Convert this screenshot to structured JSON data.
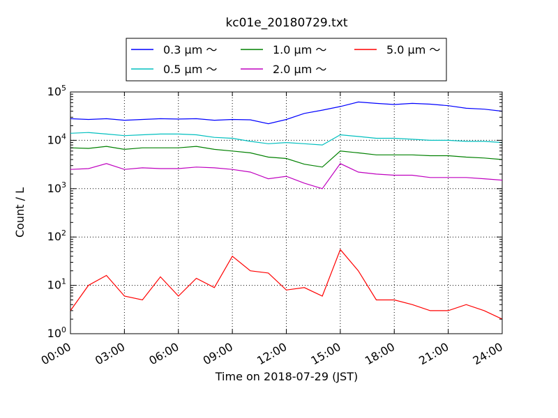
{
  "chart_data": {
    "type": "line",
    "title": "kc01e_20180729.txt",
    "xlabel": "Time on 2018-07-29 (JST)",
    "ylabel": "Count / L",
    "y_scale": "log",
    "ylim": [
      1,
      100000
    ],
    "xlim": [
      "00:00",
      "24:00"
    ],
    "grid": true,
    "legend_placement": "top-center",
    "x_tick_labels": [
      "00:00",
      "03:00",
      "06:00",
      "09:00",
      "12:00",
      "15:00",
      "18:00",
      "21:00",
      "24:00"
    ],
    "y_tick_labels": [
      {
        "base": "10",
        "exp": "0"
      },
      {
        "base": "10",
        "exp": "1"
      },
      {
        "base": "10",
        "exp": "2"
      },
      {
        "base": "10",
        "exp": "3"
      },
      {
        "base": "10",
        "exp": "4"
      },
      {
        "base": "10",
        "exp": "5"
      }
    ],
    "x_hours": [
      0,
      1,
      2,
      3,
      4,
      5,
      6,
      7,
      8,
      9,
      10,
      11,
      12,
      13,
      14,
      15,
      16,
      17,
      18,
      19,
      20,
      21,
      22,
      23,
      24
    ],
    "series": [
      {
        "name": "0.3 μm ～",
        "color": "#0000ff",
        "values": [
          28000,
          27000,
          28000,
          26000,
          27000,
          28000,
          27500,
          28000,
          26000,
          27000,
          26500,
          22000,
          27000,
          36000,
          42000,
          50000,
          62000,
          58000,
          55000,
          58000,
          56000,
          52000,
          46000,
          44000,
          40000
        ]
      },
      {
        "name": "0.5 μm ～",
        "color": "#00bfbf",
        "values": [
          14000,
          14500,
          13500,
          12500,
          13000,
          13500,
          13500,
          13000,
          11500,
          11000,
          9500,
          8500,
          9000,
          8500,
          8000,
          13000,
          12000,
          11000,
          11000,
          10500,
          10000,
          10000,
          9500,
          9500,
          9000
        ]
      },
      {
        "name": "1.0 μm ～",
        "color": "#008000",
        "values": [
          7000,
          6800,
          7500,
          6500,
          7000,
          7000,
          7000,
          7500,
          6500,
          6000,
          5500,
          4500,
          4200,
          3200,
          2800,
          6000,
          5500,
          5000,
          5000,
          5000,
          4800,
          4800,
          4500,
          4300,
          4000
        ]
      },
      {
        "name": "2.0 μm ～",
        "color": "#bf00bf",
        "values": [
          2500,
          2600,
          3300,
          2500,
          2700,
          2600,
          2600,
          2800,
          2700,
          2500,
          2200,
          1600,
          1800,
          1300,
          1000,
          3300,
          2200,
          2000,
          1900,
          1900,
          1700,
          1700,
          1700,
          1600,
          1500
        ]
      },
      {
        "name": "5.0 μm ～",
        "color": "#ff0000",
        "values": [
          3,
          10,
          16,
          6,
          5,
          15,
          6,
          14,
          9,
          40,
          20,
          18,
          8,
          9,
          6,
          55,
          20,
          5,
          5,
          4,
          3,
          3,
          4,
          3,
          2
        ]
      }
    ]
  }
}
